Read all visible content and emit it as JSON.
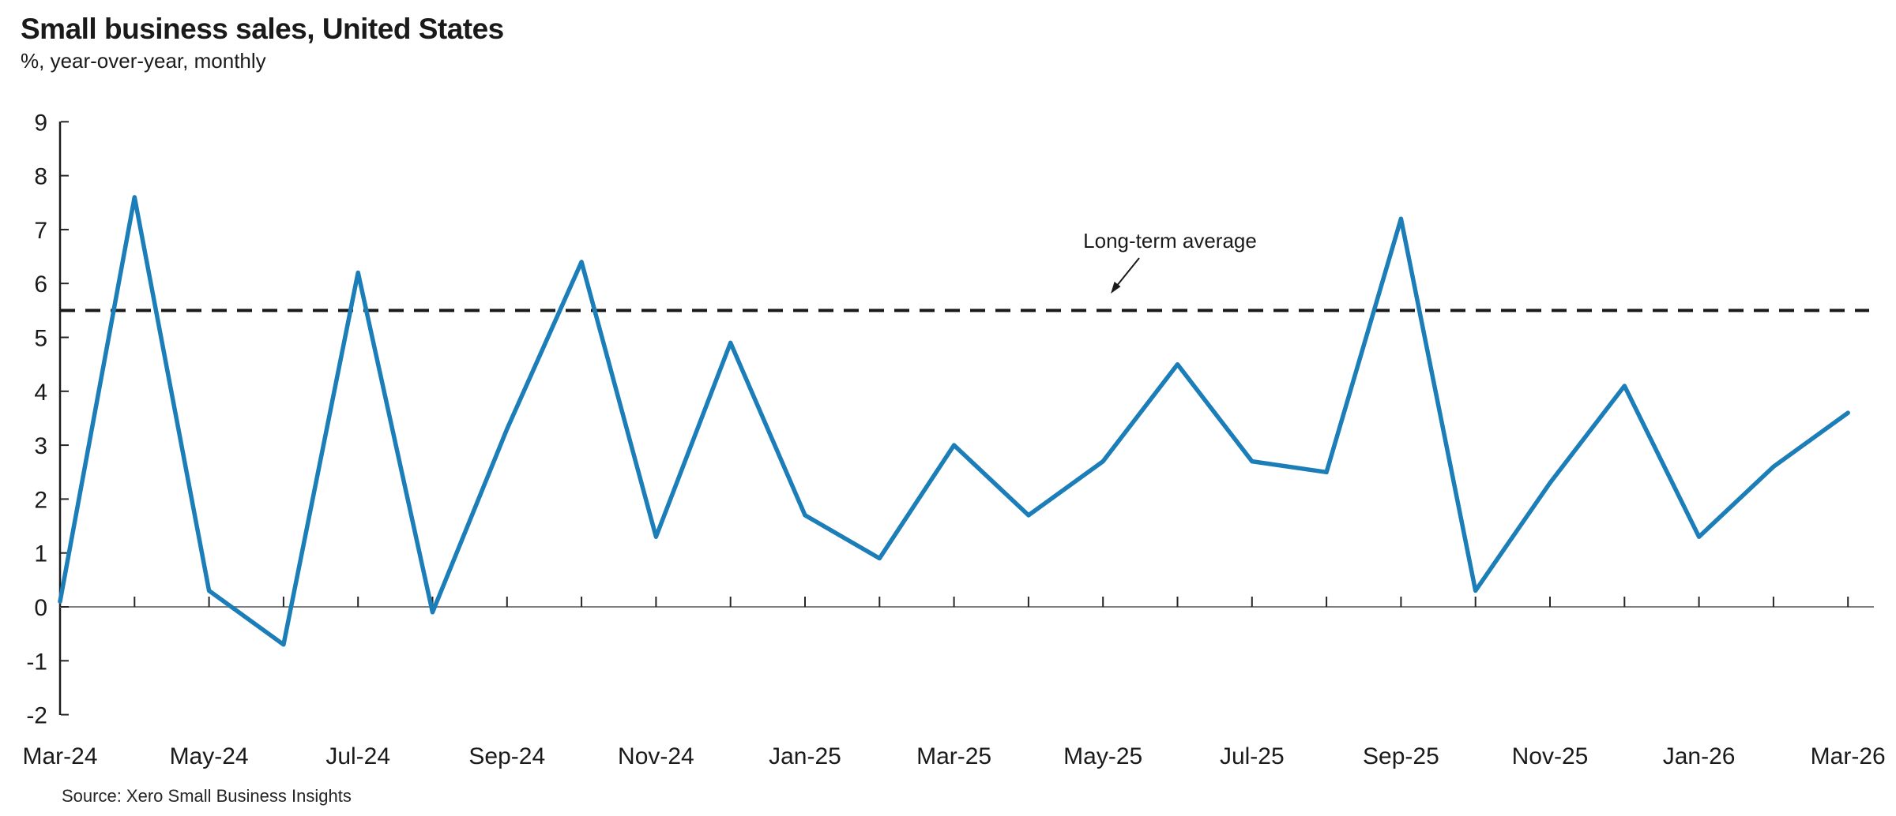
{
  "header": {
    "title": "Small business sales, United States",
    "subtitle": "%, year-over-year, monthly"
  },
  "annotation": {
    "label": "Long-term average"
  },
  "source": "Source: Xero Small Business Insights",
  "colors": {
    "line": "#1b7eb8",
    "average_line": "#1a1a1a",
    "zero_line": "#7f7f7f",
    "axis": "#1a1a1a"
  },
  "chart_data": {
    "type": "line",
    "title": "Small business sales, United States",
    "subtitle": "%, year-over-year, monthly",
    "xlabel": "",
    "ylabel": "%, year-over-year",
    "ylim": [
      -2,
      9
    ],
    "y_ticks": [
      -2,
      -1,
      0,
      1,
      2,
      3,
      4,
      5,
      6,
      7,
      8,
      9
    ],
    "grid": false,
    "x": [
      "Mar-24",
      "Apr-24",
      "May-24",
      "Jun-24",
      "Jul-24",
      "Aug-24",
      "Sep-24",
      "Oct-24",
      "Nov-24",
      "Dec-24",
      "Jan-25",
      "Feb-25",
      "Mar-25",
      "Apr-25",
      "May-25",
      "Jun-25",
      "Jul-25",
      "Aug-25",
      "Sep-25",
      "Oct-25",
      "Nov-25",
      "Dec-25",
      "Jan-26",
      "Feb-26",
      "Mar-26"
    ],
    "x_tick_labels": [
      "Mar-24",
      "May-24",
      "Jul-24",
      "Sep-24",
      "Nov-24",
      "Jan-25",
      "Mar-25",
      "May-25",
      "Jul-25",
      "Sep-25",
      "Nov-25",
      "Jan-26",
      "Mar-26"
    ],
    "series": [
      {
        "name": "Small business sales, % year-over-year, monthly",
        "values": [
          0.1,
          7.6,
          0.3,
          -0.7,
          6.2,
          -0.1,
          3.3,
          6.4,
          1.3,
          4.9,
          1.7,
          0.9,
          3.0,
          1.7,
          2.7,
          4.5,
          2.7,
          2.5,
          7.2,
          0.3,
          2.3,
          4.1,
          1.3,
          2.6,
          3.6
        ]
      }
    ],
    "long_term_average": 5.5,
    "annotation": "Long-term average",
    "legend_position": "none"
  }
}
